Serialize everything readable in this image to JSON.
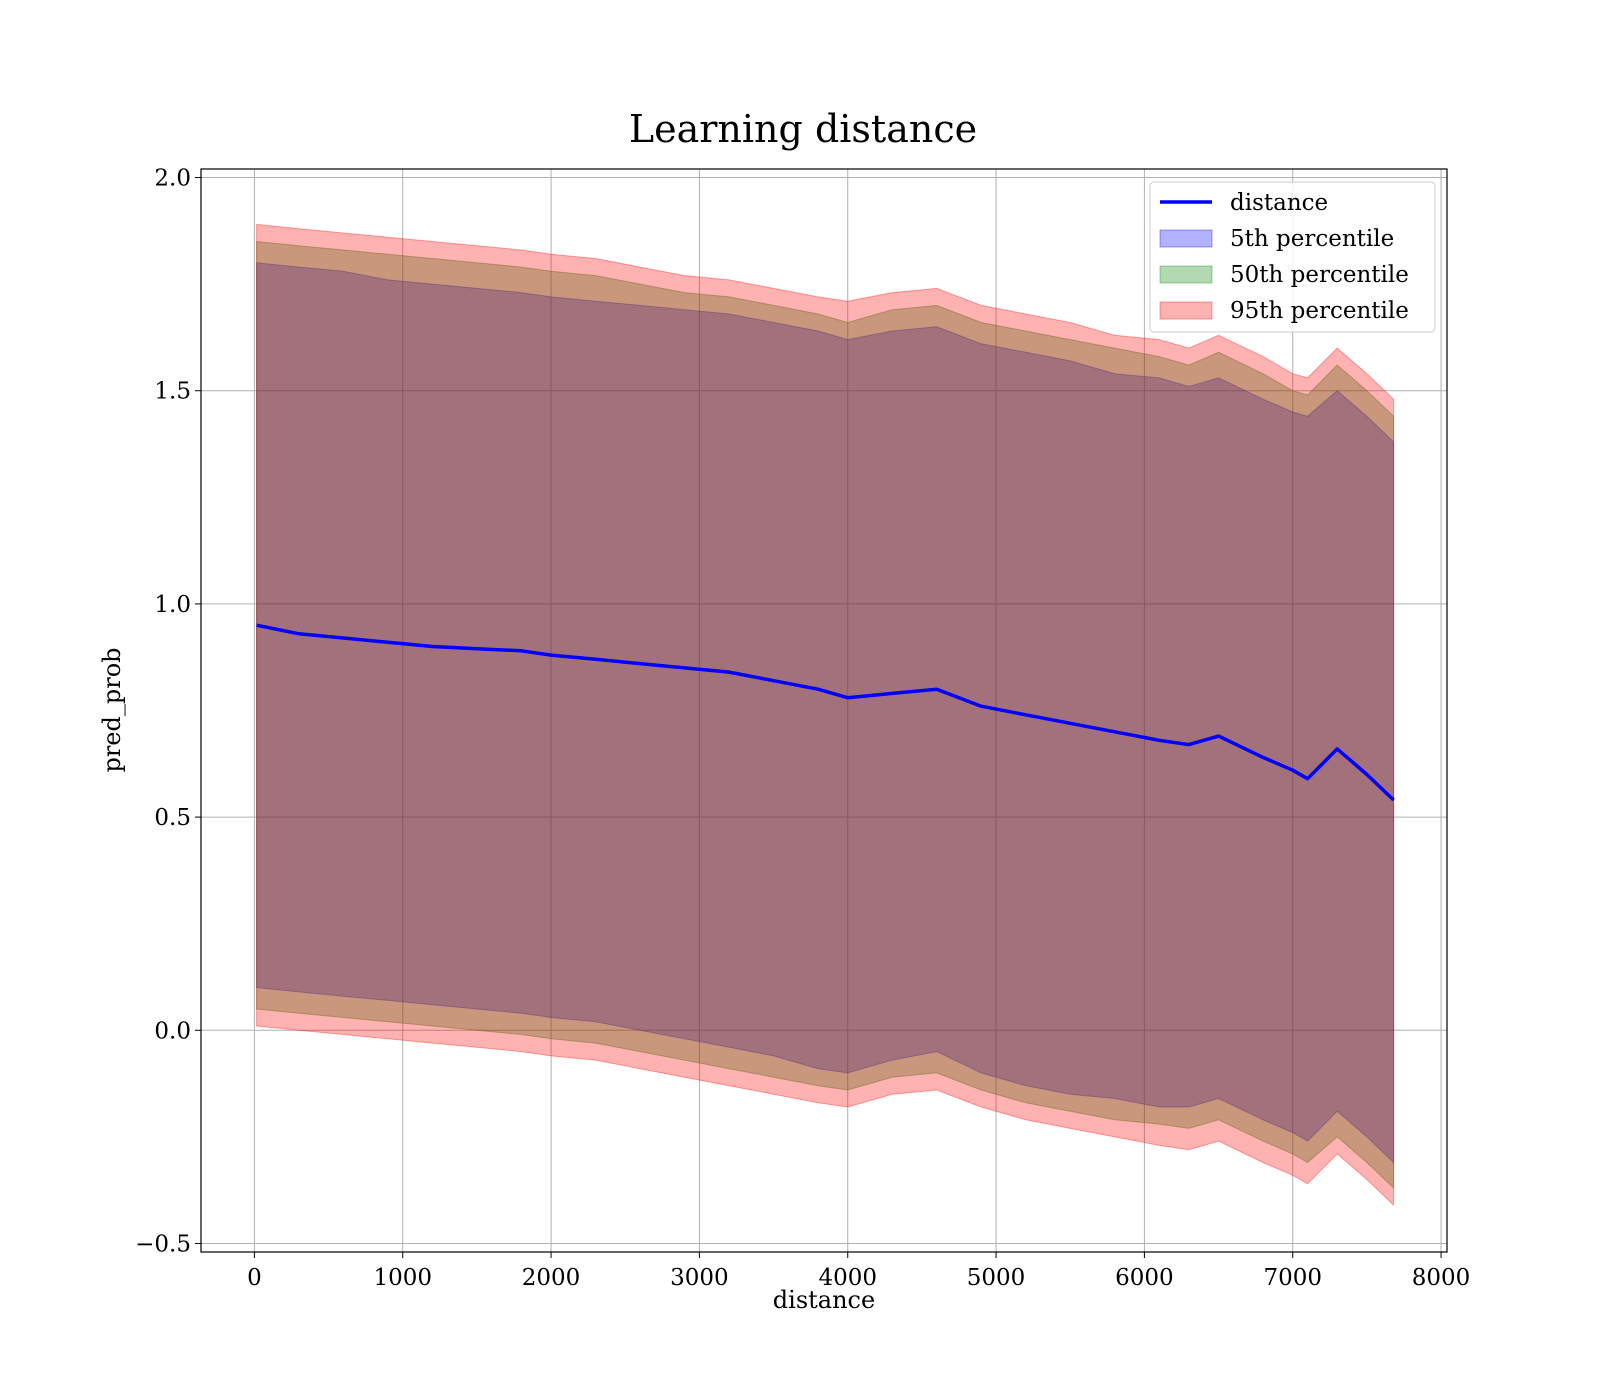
{
  "chart_data": {
    "type": "area",
    "title": "Learning distance",
    "xlabel": "distance",
    "ylabel": "pred_prob",
    "xlim": [
      -360,
      8040
    ],
    "ylim": [
      -0.52,
      2.02
    ],
    "xticks": [
      0,
      1000,
      2000,
      3000,
      4000,
      5000,
      6000,
      7000,
      8000
    ],
    "yticks": [
      -0.5,
      0.0,
      0.5,
      1.0,
      1.5,
      2.0
    ],
    "ytick_labels": [
      "−0.5",
      "0.0",
      "0.5",
      "1.0",
      "1.5",
      "2.0"
    ],
    "grid": true,
    "legend_position": "top-right",
    "colors": {
      "line": "#0000ff",
      "band5": "#0000ff",
      "band50": "#008000",
      "band95": "#ff0000"
    },
    "x": [
      15,
      300,
      600,
      900,
      1200,
      1500,
      1800,
      2000,
      2300,
      2600,
      2900,
      3200,
      3500,
      3800,
      4000,
      4300,
      4600,
      4900,
      5200,
      5500,
      5800,
      6100,
      6300,
      6500,
      6800,
      7000,
      7100,
      7300,
      7500,
      7680
    ],
    "series": [
      {
        "name": "distance",
        "kind": "line",
        "values": [
          0.95,
          0.93,
          0.92,
          0.91,
          0.9,
          0.895,
          0.89,
          0.88,
          0.87,
          0.86,
          0.85,
          0.84,
          0.82,
          0.8,
          0.78,
          0.79,
          0.8,
          0.76,
          0.74,
          0.72,
          0.7,
          0.68,
          0.67,
          0.69,
          0.64,
          0.61,
          0.59,
          0.66,
          0.6,
          0.54
        ]
      },
      {
        "name": "5th percentile",
        "kind": "band",
        "lower": [
          0.1,
          0.09,
          0.08,
          0.07,
          0.06,
          0.05,
          0.04,
          0.03,
          0.02,
          0.0,
          -0.02,
          -0.04,
          -0.06,
          -0.09,
          -0.1,
          -0.07,
          -0.05,
          -0.1,
          -0.13,
          -0.15,
          -0.16,
          -0.18,
          -0.18,
          -0.16,
          -0.21,
          -0.24,
          -0.26,
          -0.19,
          -0.25,
          -0.31
        ],
        "upper": [
          1.8,
          1.79,
          1.78,
          1.76,
          1.75,
          1.74,
          1.73,
          1.72,
          1.71,
          1.7,
          1.69,
          1.68,
          1.66,
          1.64,
          1.62,
          1.64,
          1.65,
          1.61,
          1.59,
          1.57,
          1.54,
          1.53,
          1.51,
          1.53,
          1.48,
          1.45,
          1.44,
          1.5,
          1.44,
          1.38
        ]
      },
      {
        "name": "50th percentile",
        "kind": "band",
        "lower": [
          0.05,
          0.04,
          0.03,
          0.02,
          0.01,
          0.0,
          -0.01,
          -0.02,
          -0.03,
          -0.05,
          -0.07,
          -0.09,
          -0.11,
          -0.13,
          -0.14,
          -0.11,
          -0.1,
          -0.14,
          -0.17,
          -0.19,
          -0.21,
          -0.22,
          -0.23,
          -0.21,
          -0.26,
          -0.29,
          -0.31,
          -0.25,
          -0.31,
          -0.37
        ],
        "upper": [
          1.85,
          1.84,
          1.83,
          1.82,
          1.81,
          1.8,
          1.79,
          1.78,
          1.77,
          1.75,
          1.73,
          1.72,
          1.7,
          1.68,
          1.66,
          1.69,
          1.7,
          1.66,
          1.64,
          1.62,
          1.6,
          1.58,
          1.56,
          1.59,
          1.54,
          1.5,
          1.49,
          1.56,
          1.5,
          1.44
        ]
      },
      {
        "name": "95th percentile",
        "kind": "band",
        "lower": [
          0.01,
          0.0,
          -0.01,
          -0.02,
          -0.03,
          -0.04,
          -0.05,
          -0.06,
          -0.07,
          -0.09,
          -0.11,
          -0.13,
          -0.15,
          -0.17,
          -0.18,
          -0.15,
          -0.14,
          -0.18,
          -0.21,
          -0.23,
          -0.25,
          -0.27,
          -0.28,
          -0.26,
          -0.31,
          -0.34,
          -0.36,
          -0.29,
          -0.35,
          -0.41
        ],
        "upper": [
          1.89,
          1.88,
          1.87,
          1.86,
          1.85,
          1.84,
          1.83,
          1.82,
          1.81,
          1.79,
          1.77,
          1.76,
          1.74,
          1.72,
          1.71,
          1.73,
          1.74,
          1.7,
          1.68,
          1.66,
          1.63,
          1.62,
          1.6,
          1.63,
          1.58,
          1.54,
          1.53,
          1.6,
          1.54,
          1.48
        ]
      }
    ],
    "legend": [
      "distance",
      "5th percentile",
      "50th percentile",
      "95th percentile"
    ]
  }
}
